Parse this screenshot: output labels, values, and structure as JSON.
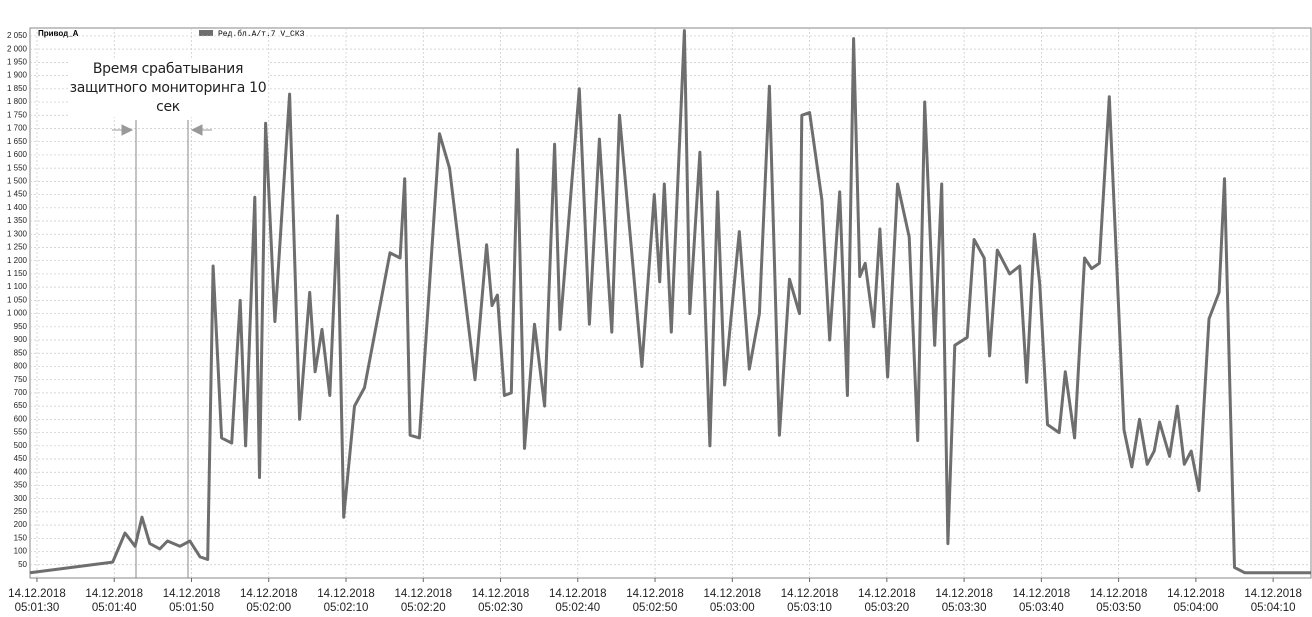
{
  "chart_data": {
    "type": "line",
    "title": "Привод_А",
    "annotation": "Время срабатывания защитного мониторинга 10 сек",
    "grid": true,
    "xlim": [
      "05:01:29.1",
      "05:04:14.9"
    ],
    "ylim": [
      0,
      2080
    ],
    "xticks": [
      {
        "value": "05:01:30",
        "label": "14.12.2018 05:01:30"
      },
      {
        "value": "05:01:40",
        "label": "14.12.2018 05:01:40"
      },
      {
        "value": "05:01:50",
        "label": "14.12.2018 05:01:50"
      },
      {
        "value": "05:02:00",
        "label": "14.12.2018 05:02:00"
      },
      {
        "value": "05:02:10",
        "label": "14.12.2018 05:02:10"
      },
      {
        "value": "05:02:20",
        "label": "14.12.2018 05:02:20"
      },
      {
        "value": "05:02:30",
        "label": "14.12.2018 05:02:30"
      },
      {
        "value": "05:02:40",
        "label": "14.12.2018 05:02:40"
      },
      {
        "value": "05:02:50",
        "label": "14.12.2018 05:02:50"
      },
      {
        "value": "05:03:00",
        "label": "14.12.2018 05:03:00"
      },
      {
        "value": "05:03:10",
        "label": "14.12.2018 05:03:10"
      },
      {
        "value": "05:03:20",
        "label": "14.12.2018 05:03:20"
      },
      {
        "value": "05:03:30",
        "label": "14.12.2018 05:03:30"
      },
      {
        "value": "05:03:40",
        "label": "14.12.2018 05:03:40"
      },
      {
        "value": "05:03:50",
        "label": "14.12.2018 05:03:50"
      },
      {
        "value": "05:04:00",
        "label": "14.12.2018 05:04:00"
      },
      {
        "value": "05:04:10",
        "label": "14.12.2018 05:04:10"
      }
    ],
    "yticks": [
      50,
      100,
      150,
      200,
      250,
      300,
      350,
      400,
      450,
      500,
      550,
      600,
      650,
      700,
      750,
      800,
      850,
      900,
      950,
      {
        "value": 1000,
        "label": "1 000"
      },
      {
        "value": 1050,
        "label": "1 050"
      },
      {
        "value": 1100,
        "label": "1 100"
      },
      {
        "value": 1150,
        "label": "1 150"
      },
      {
        "value": 1200,
        "label": "1 200"
      },
      {
        "value": 1250,
        "label": "1 250"
      },
      {
        "value": 1300,
        "label": "1 300"
      },
      {
        "value": 1350,
        "label": "1 350"
      },
      {
        "value": 1400,
        "label": "1 400"
      },
      {
        "value": 1450,
        "label": "1 450"
      },
      {
        "value": 1500,
        "label": "1 500"
      },
      {
        "value": 1550,
        "label": "1 550"
      },
      {
        "value": 1600,
        "label": "1 600"
      },
      {
        "value": 1650,
        "label": "1 650"
      },
      {
        "value": 1700,
        "label": "1 700"
      },
      {
        "value": 1750,
        "label": "1 750"
      },
      {
        "value": 1800,
        "label": "1 800"
      },
      {
        "value": 1850,
        "label": "1 850"
      },
      {
        "value": 1900,
        "label": "1 900"
      },
      {
        "value": 1950,
        "label": "1 950"
      },
      {
        "value": 2000,
        "label": "2 000"
      },
      {
        "value": 2050,
        "label": "2 050"
      }
    ],
    "x": [
      "05:01:29.1",
      "05:01:39.8",
      "05:01:41.4",
      "05:01:42.7",
      "05:01:43.6",
      "05:01:44.6",
      "05:01:45.9",
      "05:01:46.9",
      "05:01:48.5",
      "05:01:49.8",
      "05:01:51.1",
      "05:01:52.1",
      "05:01:52.8",
      "05:01:53.9",
      "05:01:55.2",
      "05:01:56.3",
      "05:01:57.0",
      "05:01:58.2",
      "05:01:58.8",
      "05:01:59.6",
      "05:02:00.8",
      "05:02:02.7",
      "05:02:04.0",
      "05:02:05.3",
      "05:02:06.0",
      "05:02:06.9",
      "05:02:07.9",
      "05:02:08.9",
      "05:02:09.7",
      "05:02:11.1",
      "05:02:12.4",
      "05:02:15.7",
      "05:02:17.0",
      "05:02:17.6",
      "05:02:18.3",
      "05:02:19.5",
      "05:02:22.1",
      "05:02:23.4",
      "05:02:26.7",
      "05:02:28.2",
      "05:02:28.9",
      "05:02:29.6",
      "05:02:30.5",
      "05:02:31.4",
      "05:02:32.2",
      "05:02:33.1",
      "05:02:34.4",
      "05:02:35.7",
      "05:02:37.0",
      "05:02:37.7",
      "05:02:40.2",
      "05:02:41.5",
      "05:02:42.8",
      "05:02:44.4",
      "05:02:45.4",
      "05:02:48.3",
      "05:02:49.9",
      "05:02:50.6",
      "05:02:51.2",
      "05:02:52.1",
      "05:02:53.8",
      "05:02:54.5",
      "05:02:55.8",
      "05:02:57.1",
      "05:02:58.1",
      "05:02:59.0",
      "05:03:00.9",
      "05:03:02.2",
      "05:03:03.5",
      "05:03:04.8",
      "05:03:06.1",
      "05:03:07.4",
      "05:03:08.7",
      "05:03:09.0",
      "05:03:10.0",
      "05:03:11.6",
      "05:03:12.6",
      "05:03:13.9",
      "05:03:14.9",
      "05:03:15.7",
      "05:03:16.5",
      "05:03:17.2",
      "05:03:18.3",
      "05:03:19.1",
      "05:03:20.1",
      "05:03:21.4",
      "05:03:22.9",
      "05:03:24.0",
      "05:03:24.9",
      "05:03:26.2",
      "05:03:27.1",
      "05:03:27.9",
      "05:03:28.8",
      "05:03:30.4",
      "05:03:31.3",
      "05:03:32.6",
      "05:03:33.3",
      "05:03:34.3",
      "05:03:35.9",
      "05:03:37.2",
      "05:03:38.1",
      "05:03:39.1",
      "05:03:39.8",
      "05:03:40.8",
      "05:03:42.3",
      "05:03:43.1",
      "05:03:44.3",
      "05:03:45.6",
      "05:03:46.5",
      "05:03:47.5",
      "05:03:48.8",
      "05:03:50.7",
      "05:03:51.7",
      "05:03:52.7",
      "05:03:53.7",
      "05:03:54.6",
      "05:03:55.3",
      "05:03:56.6",
      "05:03:57.6",
      "05:03:58.5",
      "05:03:59.4",
      "05:04:00.4",
      "05:04:01.7",
      "05:04:03.0",
      "05:04:03.7",
      "05:04:05.0",
      "05:04:06.3",
      "05:04:14.9"
    ],
    "series": [
      {
        "name": "Ред.бл.А/т.7 V_СКЗ",
        "color": "#6e6e6e",
        "values": [
          20,
          60,
          170,
          120,
          230,
          130,
          110,
          140,
          120,
          140,
          80,
          70,
          1180,
          530,
          510,
          1050,
          500,
          1440,
          380,
          1720,
          970,
          1830,
          600,
          1080,
          780,
          940,
          690,
          1370,
          230,
          650,
          720,
          1230,
          1210,
          1510,
          540,
          530,
          1680,
          1550,
          750,
          1260,
          1030,
          1070,
          690,
          700,
          1620,
          490,
          960,
          650,
          1640,
          940,
          1850,
          960,
          1660,
          930,
          1750,
          800,
          1450,
          1120,
          1490,
          930,
          2070,
          1000,
          1610,
          500,
          1460,
          730,
          1310,
          790,
          1000,
          1860,
          540,
          1130,
          1000,
          1750,
          1760,
          1430,
          900,
          1460,
          690,
          2040,
          1140,
          1190,
          950,
          1320,
          760,
          1490,
          1290,
          520,
          1800,
          880,
          1490,
          130,
          880,
          910,
          1280,
          1210,
          840,
          1240,
          1150,
          1180,
          740,
          1300,
          1110,
          580,
          550,
          780,
          530,
          1210,
          1170,
          1190,
          1820,
          560,
          420,
          600,
          430,
          480,
          590,
          460,
          650,
          430,
          480,
          330,
          980,
          1080,
          1510,
          40,
          20,
          20
        ]
      }
    ]
  }
}
